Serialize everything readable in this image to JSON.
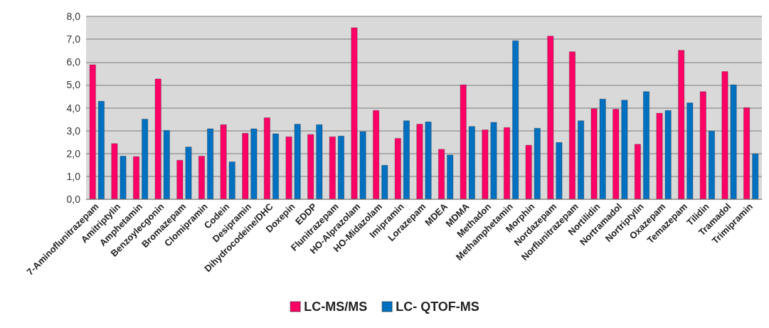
{
  "chart_data": {
    "type": "bar",
    "categories": [
      "7-Aminoflunitrazepam",
      "Amitriptylin",
      "Amphetamin",
      "Benzoylecgonin",
      "Bromazepam",
      "Clomipramin",
      "Codein",
      "Desipramin",
      "Dihydrocodeine/DHC",
      "Doxepin",
      "EDDP",
      "Flunitrazepam",
      "HO-Alprazolam",
      "HO-Midazolam",
      "Imipramin",
      "Lorazepam",
      "MDEA",
      "MDMA",
      "Methadon",
      "Methamphetamin",
      "Morphin",
      "Nordazepam",
      "Norflunitrazepam",
      "Nortilidin",
      "Nortramadol",
      "Nortriptylin",
      "Oxazepam",
      "Temazepam",
      "Tilidin",
      "Tramadol",
      "Trimipramin"
    ],
    "series": [
      {
        "name": "LC-MS/MS",
        "color": "#ff0066",
        "values": [
          5.9,
          2.45,
          1.88,
          5.28,
          1.72,
          1.9,
          3.28,
          2.9,
          3.58,
          2.75,
          2.85,
          2.75,
          7.52,
          3.9,
          2.68,
          3.3,
          2.2,
          5.02,
          3.05,
          3.15,
          2.38,
          7.15,
          6.47,
          3.98,
          3.95,
          2.42,
          3.78,
          6.53,
          4.72,
          5.6,
          4.02
        ]
      },
      {
        "name": "LC- QTOF-MS",
        "color": "#0070c0",
        "values": [
          4.3,
          1.9,
          3.52,
          3.03,
          2.3,
          3.1,
          1.65,
          3.1,
          2.88,
          3.3,
          3.28,
          2.78,
          2.97,
          1.5,
          3.45,
          3.4,
          1.95,
          3.2,
          3.38,
          6.95,
          3.12,
          2.5,
          3.45,
          4.4,
          4.35,
          4.72,
          3.9,
          4.23,
          3.0,
          5.02,
          2.0
        ]
      }
    ],
    "ylim": [
      0,
      8
    ],
    "yticks": [
      {
        "value": 0,
        "label": "0,0"
      },
      {
        "value": 1,
        "label": "1,0"
      },
      {
        "value": 2,
        "label": "2,0"
      },
      {
        "value": 3,
        "label": "3,0"
      },
      {
        "value": 4,
        "label": "4,0"
      },
      {
        "value": 5,
        "label": "5,0"
      },
      {
        "value": 6,
        "label": "6,0"
      },
      {
        "value": 7,
        "label": "7,0"
      },
      {
        "value": 8,
        "label": "8,0"
      }
    ],
    "grid": "y",
    "legend": "bottom"
  }
}
